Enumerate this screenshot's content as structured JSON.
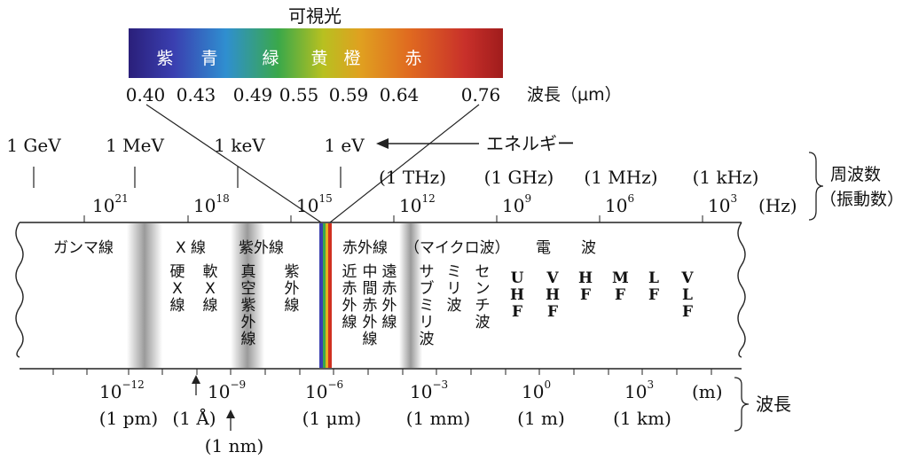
{
  "visible": {
    "title": "可視光",
    "colors": [
      "紫",
      "青",
      "緑",
      "黄",
      "橙",
      "赤"
    ],
    "wavelengths": [
      "0.40",
      "0.43",
      "0.49",
      "0.55",
      "0.59",
      "0.64",
      "0.76"
    ],
    "wavelength_unit": "波長（μm）"
  },
  "energy": {
    "labels": [
      "1 GeV",
      "1 MeV",
      "1 keV",
      "1 eV"
    ],
    "arrow_label": "エネルギー"
  },
  "frequency": {
    "named": [
      "(1 THz)",
      "(1 GHz)",
      "(1 MHz)",
      "(1 kHz)"
    ],
    "ticks": [
      {
        "base": "10",
        "exp": "21"
      },
      {
        "base": "10",
        "exp": "18"
      },
      {
        "base": "10",
        "exp": "15"
      },
      {
        "base": "10",
        "exp": "12"
      },
      {
        "base": "10",
        "exp": "9"
      },
      {
        "base": "10",
        "exp": "6"
      },
      {
        "base": "10",
        "exp": "3"
      }
    ],
    "unit": "(Hz)",
    "brace_label_1": "周波数",
    "brace_label_2": "（振動数）"
  },
  "bands": {
    "gamma": "ガンマ線",
    "xray": "X 線",
    "uv": "紫外線",
    "ir": "赤外線",
    "microwave": "（マイクロ波）",
    "radio": "電　　波",
    "hard_x": "硬X線",
    "soft_x": "軟X線",
    "vacuum_uv": "真空紫外線",
    "uv_sub": "紫外線",
    "near_ir": "近赤外線",
    "mid_ir": "中間赤外線",
    "far_ir": "遠赤外線",
    "submm": "サブミリ波",
    "mm": "ミリ波",
    "cm": "センチ波",
    "uhf": "UHF",
    "vhf": "VHF",
    "hf": "HF",
    "mf": "MF",
    "lf": "LF",
    "vlf": "VLF"
  },
  "wavelength_axis": {
    "ticks": [
      {
        "base": "10",
        "exp": "−12"
      },
      {
        "base": "10",
        "exp": "−9"
      },
      {
        "base": "10",
        "exp": "−6"
      },
      {
        "base": "10",
        "exp": "−3"
      },
      {
        "base": "10",
        "exp": "0"
      },
      {
        "base": "10",
        "exp": "3"
      }
    ],
    "unit": "(m)",
    "named": [
      "(1 pm)",
      "(1 Å)",
      "(1 μm)",
      "(1 mm)",
      "(1 m)",
      "(1 km)"
    ],
    "nm": "(1 nm)",
    "brace_label": "波長"
  }
}
